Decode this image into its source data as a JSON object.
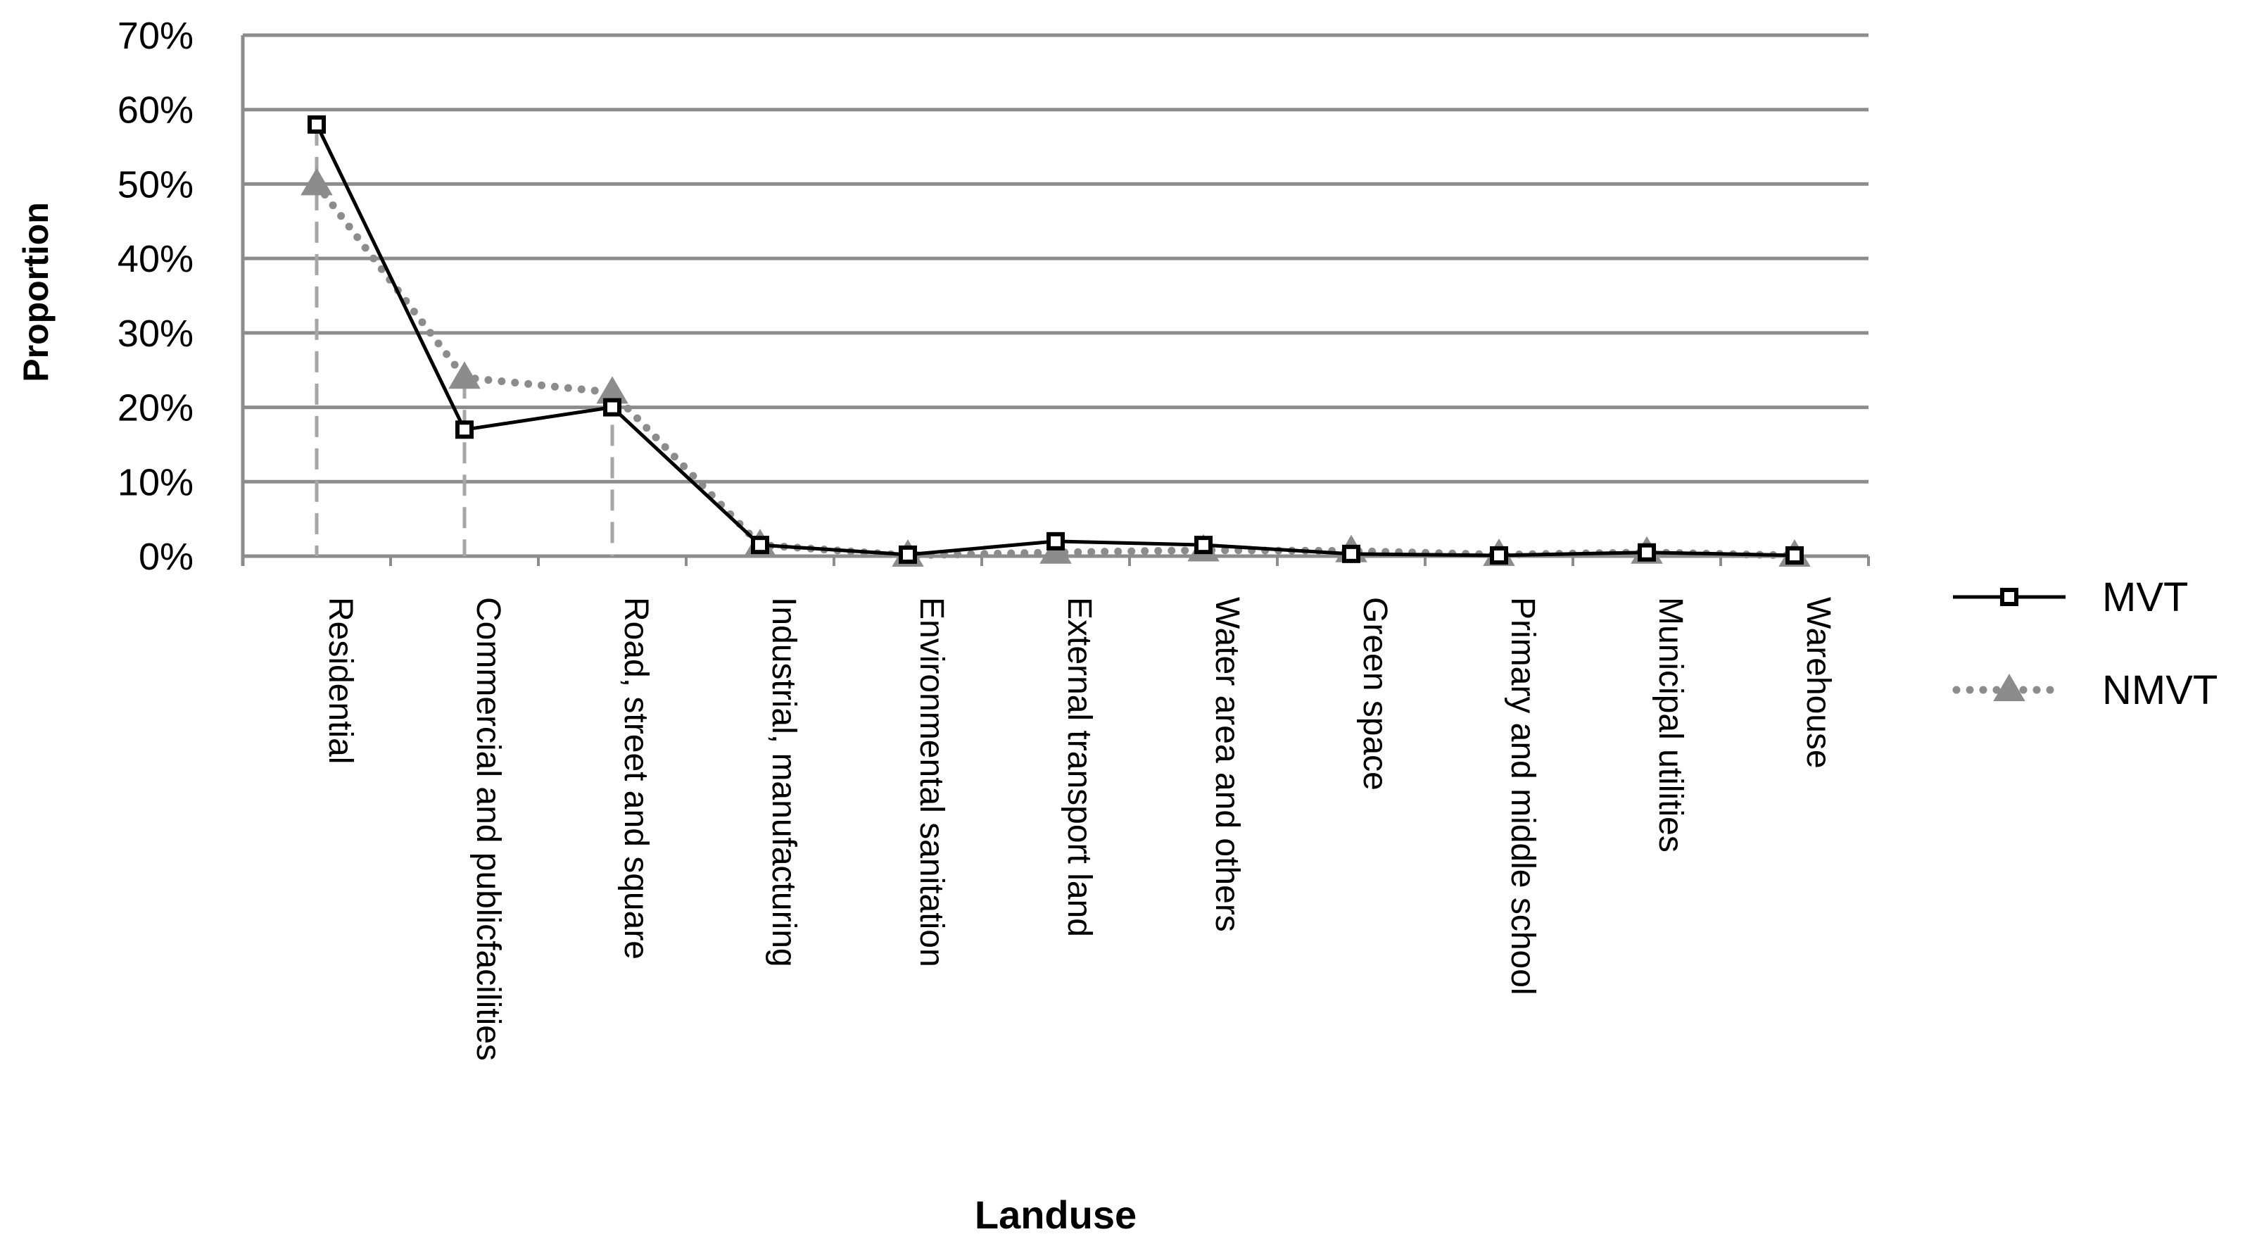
{
  "chart_data": {
    "type": "line",
    "title": "",
    "xlabel": "Landuse",
    "ylabel": "Proportion",
    "ylim": [
      0,
      0.7
    ],
    "y_ticks": [
      "0%",
      "10%",
      "20%",
      "30%",
      "40%",
      "50%",
      "60%",
      "70%"
    ],
    "grid": true,
    "legend_position": "right",
    "categories": [
      "Residential",
      "Commercial and publicfacilities",
      "Road, street and square",
      "Industrial, manufacturing",
      "Environmental sanitation",
      "External transport land",
      "Water area and others",
      "Green space",
      "Primary and middle school",
      "Municipal utilities",
      "Warehouse"
    ],
    "series": [
      {
        "name": "MVT",
        "color": "#000000",
        "marker": "square",
        "line_style": "solid",
        "values": [
          0.58,
          0.17,
          0.2,
          0.015,
          0.002,
          0.02,
          0.015,
          0.003,
          0.001,
          0.005,
          0.001
        ]
      },
      {
        "name": "NMVT",
        "color": "#8c8c8c",
        "marker": "triangle",
        "line_style": "dotted",
        "values": [
          0.5,
          0.24,
          0.22,
          0.015,
          0.001,
          0.005,
          0.008,
          0.007,
          0.002,
          0.005,
          0.001
        ]
      }
    ],
    "colors": {
      "grid": "#8c8c8c",
      "axis": "#8c8c8c",
      "drop_line": "#a6a6a6"
    }
  }
}
